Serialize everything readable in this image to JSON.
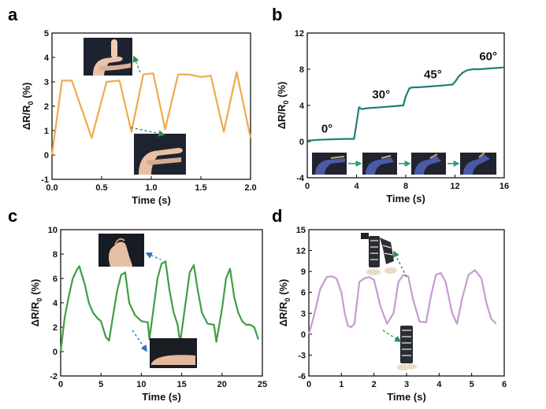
{
  "chart_data": [
    {
      "panel": "a",
      "type": "line",
      "xlabel": "Time (s)",
      "ylabel_html": "ΔR/R0 (%)",
      "ylabel": [
        "ΔR/R",
        "0",
        " (%)"
      ],
      "xlim": [
        0,
        2.0
      ],
      "ylim": [
        -1,
        5
      ],
      "xticks": [
        0,
        0.5,
        1.0,
        1.5,
        2.0
      ],
      "xtick_labels": [
        "0.0",
        "0.5",
        "1.0",
        "1.5",
        "2.0"
      ],
      "yticks": [
        -1,
        0,
        1,
        2,
        3,
        4,
        5
      ],
      "ytick_labels": [
        "-1",
        "0",
        "1",
        "2",
        "3",
        "4",
        "5"
      ],
      "color": "#f0a94a",
      "series": [
        {
          "name": "finger bending",
          "x": [
            0,
            0.1,
            0.2,
            0.4,
            0.55,
            0.68,
            0.8,
            0.92,
            1.02,
            1.14,
            1.27,
            1.38,
            1.5,
            1.6,
            1.73,
            1.86,
            2.0
          ],
          "y": [
            0,
            3.05,
            3.05,
            0.7,
            3.0,
            3.05,
            0.95,
            3.3,
            3.35,
            1.05,
            3.3,
            3.3,
            3.2,
            3.25,
            0.95,
            3.4,
            0.7
          ]
        }
      ],
      "insets": [
        "bent finger photo",
        "straight finger photo"
      ]
    },
    {
      "panel": "b",
      "type": "line",
      "xlabel": "Time (s)",
      "ylabel": [
        "ΔR/R",
        "0",
        " (%)"
      ],
      "xlim": [
        0,
        16
      ],
      "ylim": [
        -4,
        12
      ],
      "xticks": [
        0,
        4,
        8,
        12,
        16
      ],
      "xtick_labels": [
        "0",
        "4",
        "8",
        "12",
        "16"
      ],
      "yticks": [
        -4,
        0,
        4,
        8,
        12
      ],
      "ytick_labels": [
        "-4",
        "0",
        "4",
        "8",
        "12"
      ],
      "color": "#1f7f77",
      "series": [
        {
          "name": "bending angle steps",
          "x": [
            0,
            1,
            2,
            3,
            3.8,
            4.0,
            4.2,
            4.4,
            5,
            6,
            7,
            7.8,
            8.0,
            8.3,
            8.6,
            9,
            10,
            11,
            11.8,
            12.0,
            12.3,
            12.6,
            13,
            13.5,
            14,
            15,
            16
          ],
          "y": [
            0.1,
            0.2,
            0.25,
            0.3,
            0.3,
            2.0,
            3.8,
            3.6,
            3.7,
            3.8,
            3.9,
            4.0,
            5.0,
            5.9,
            6.0,
            6.0,
            6.1,
            6.2,
            6.3,
            6.6,
            7.2,
            7.6,
            7.9,
            8.0,
            8.0,
            8.1,
            8.2
          ]
        }
      ],
      "annotations": [
        "0°",
        "30°",
        "45°",
        "60°"
      ],
      "insets": [
        "hand 0°",
        "hand 30°",
        "hand 45°",
        "hand 60°"
      ]
    },
    {
      "panel": "c",
      "type": "line",
      "xlabel": "Time (s)",
      "ylabel": [
        "ΔR/R",
        "0",
        " (%)"
      ],
      "xlim": [
        0,
        25
      ],
      "ylim": [
        -2,
        10
      ],
      "xticks": [
        0,
        5,
        10,
        15,
        20,
        25
      ],
      "xtick_labels": [
        "0",
        "5",
        "10",
        "15",
        "20",
        "25"
      ],
      "yticks": [
        -2,
        0,
        2,
        4,
        6,
        8,
        10
      ],
      "ytick_labels": [
        "-2",
        "0",
        "2",
        "4",
        "6",
        "8",
        "10"
      ],
      "color": "#3f9e43",
      "series": [
        {
          "name": "wrist bending",
          "x": [
            0,
            0.5,
            1,
            1.5,
            2,
            2.3,
            3,
            3.5,
            4,
            4.6,
            5,
            5.6,
            6,
            6.5,
            7,
            7.5,
            8,
            8.5,
            9.2,
            10,
            10.8,
            11,
            11.5,
            12,
            12.5,
            13,
            13.5,
            14,
            14.5,
            14.8,
            15.4,
            16,
            16.5,
            17,
            17.5,
            18.2,
            19,
            19.3,
            20,
            20.5,
            21,
            21.5,
            22,
            22.5,
            23,
            23.5,
            24,
            24.5
          ],
          "y": [
            0,
            2.8,
            4.5,
            6.0,
            6.7,
            7.0,
            5.5,
            4.0,
            3.2,
            2.7,
            2.5,
            1.2,
            0.9,
            3.0,
            5.0,
            6.3,
            6.5,
            4.0,
            3.0,
            2.5,
            2.4,
            1.0,
            3.5,
            6.0,
            7.2,
            7.4,
            5.0,
            3.2,
            2.2,
            0.7,
            3.6,
            6.5,
            7.1,
            5.0,
            3.2,
            2.3,
            2.2,
            0.8,
            3.5,
            6.0,
            6.8,
            4.5,
            3.2,
            2.5,
            2.2,
            2.2,
            2.0,
            1.0
          ]
        }
      ],
      "insets": [
        "bent wrist photo",
        "flat wrist photo"
      ]
    },
    {
      "panel": "d",
      "type": "line",
      "xlabel": "Time (s)",
      "ylabel": [
        "ΔR/R",
        "0",
        " (%)"
      ],
      "xlim": [
        0,
        6
      ],
      "ylim": [
        -6,
        15
      ],
      "xticks": [
        0,
        1,
        2,
        3,
        4,
        5,
        6
      ],
      "xtick_labels": [
        "0",
        "1",
        "2",
        "3",
        "4",
        "5",
        "6"
      ],
      "yticks": [
        -6,
        -3,
        0,
        3,
        6,
        9,
        12,
        15
      ],
      "ytick_labels": [
        "-6",
        "-3",
        "0",
        "3",
        "6",
        "9",
        "12",
        "15"
      ],
      "color": "#c79ad3",
      "series": [
        {
          "name": "knee bending",
          "x": [
            0,
            0.15,
            0.35,
            0.55,
            0.7,
            0.85,
            1.0,
            1.1,
            1.2,
            1.3,
            1.4,
            1.55,
            1.7,
            1.85,
            2.0,
            2.2,
            2.4,
            2.6,
            2.75,
            2.9,
            3.05,
            3.2,
            3.4,
            3.6,
            3.75,
            3.9,
            4.05,
            4.2,
            4.4,
            4.55,
            4.7,
            4.9,
            5.1,
            5.3,
            5.45,
            5.6,
            5.75
          ],
          "y": [
            0,
            2.5,
            6.5,
            8.2,
            8.3,
            8.0,
            6.0,
            3.0,
            1.2,
            1.0,
            1.5,
            7.5,
            8.0,
            8.2,
            7.8,
            4.0,
            1.5,
            3.0,
            7.5,
            8.5,
            8.3,
            5.0,
            1.8,
            1.7,
            5.5,
            8.5,
            8.8,
            7.5,
            3.0,
            1.5,
            5.0,
            8.5,
            9.2,
            8.0,
            4.5,
            2.2,
            1.5
          ]
        }
      ],
      "insets": [
        "walking legs (knee bent)",
        "standing legs"
      ]
    }
  ],
  "panel_labels": [
    "a",
    "b",
    "c",
    "d"
  ],
  "colors": {
    "arrow_green": "#2f8f55",
    "arrow_blue": "#2e6fb8",
    "frame": "#000000"
  }
}
